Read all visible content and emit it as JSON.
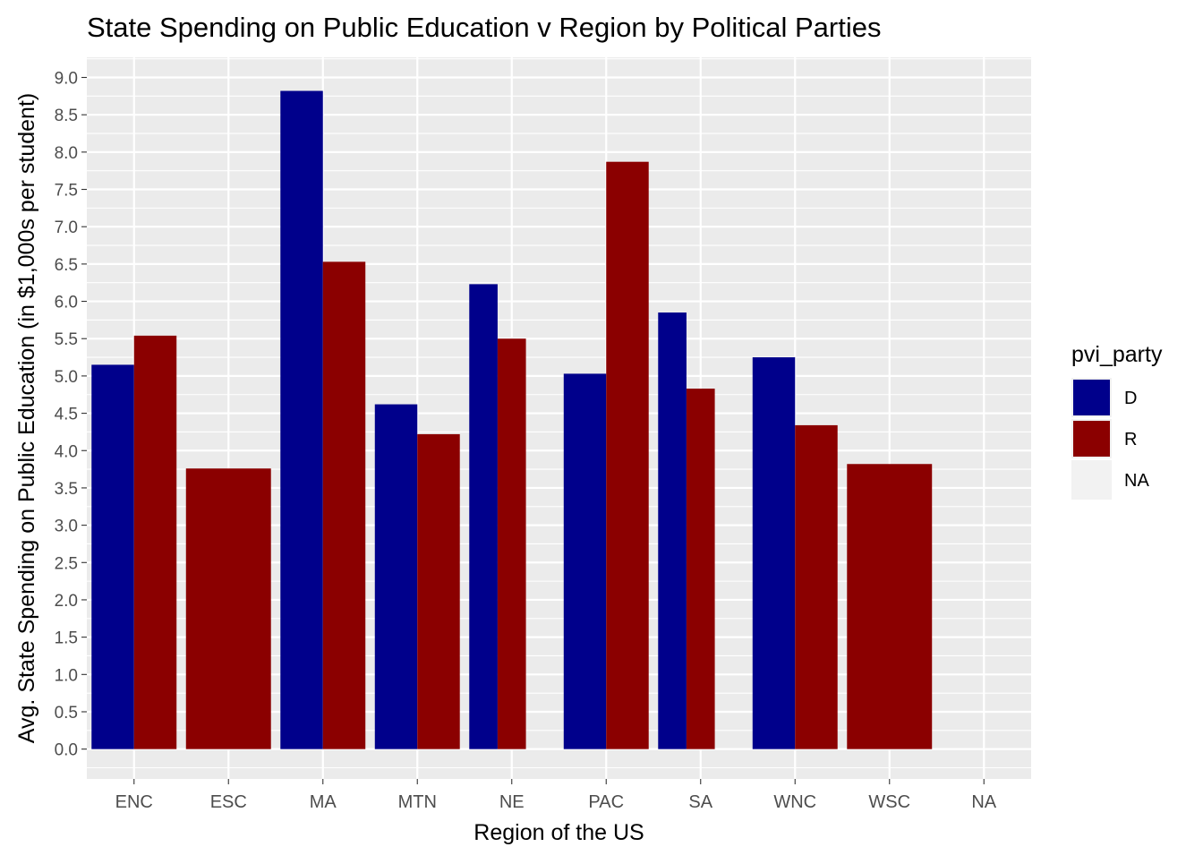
{
  "chart_data": {
    "type": "bar",
    "title": "State Spending on Public Education v Region by Political Parties",
    "xlabel": "Region of the US",
    "ylabel": "Avg. State Spending on Public Education (in $1,000s per student)",
    "categories": [
      "ENC",
      "ESC",
      "MA",
      "MTN",
      "NE",
      "PAC",
      "SA",
      "WNC",
      "WSC",
      "NA"
    ],
    "ylim": [
      -0.4,
      9.27
    ],
    "yticks": [
      "0.0",
      "0.5",
      "1.0",
      "1.5",
      "2.0",
      "2.5",
      "3.0",
      "3.5",
      "4.0",
      "4.5",
      "5.0",
      "5.5",
      "6.0",
      "6.5",
      "7.0",
      "7.5",
      "8.0",
      "8.5",
      "9.0"
    ],
    "grid": true,
    "legend": {
      "title": "pvi_party",
      "position": "right",
      "entries": [
        {
          "label": "D",
          "color": "#00008B"
        },
        {
          "label": "R",
          "color": "#8B0000"
        },
        {
          "label": "NA",
          "color": "#EBEBEB"
        }
      ]
    },
    "groups": [
      {
        "category": "ENC",
        "bars": [
          {
            "party": "D",
            "value": 5.15
          },
          {
            "party": "R",
            "value": 5.54
          }
        ]
      },
      {
        "category": "ESC",
        "bars": [
          {
            "party": "R",
            "value": 3.76
          }
        ]
      },
      {
        "category": "MA",
        "bars": [
          {
            "party": "D",
            "value": 8.82
          },
          {
            "party": "R",
            "value": 6.53
          }
        ]
      },
      {
        "category": "MTN",
        "bars": [
          {
            "party": "D",
            "value": 4.62
          },
          {
            "party": "R",
            "value": 4.22
          }
        ]
      },
      {
        "category": "NE",
        "bars": [
          {
            "party": "D",
            "value": 6.23
          },
          {
            "party": "R",
            "value": 5.5
          },
          {
            "party": "NA",
            "value": 0
          }
        ]
      },
      {
        "category": "PAC",
        "bars": [
          {
            "party": "D",
            "value": 5.03
          },
          {
            "party": "R",
            "value": 7.87
          }
        ]
      },
      {
        "category": "SA",
        "bars": [
          {
            "party": "D",
            "value": 5.85
          },
          {
            "party": "R",
            "value": 4.83
          },
          {
            "party": "NA",
            "value": 0
          }
        ]
      },
      {
        "category": "WNC",
        "bars": [
          {
            "party": "D",
            "value": 5.25
          },
          {
            "party": "R",
            "value": 4.34
          }
        ]
      },
      {
        "category": "WSC",
        "bars": [
          {
            "party": "R",
            "value": 3.82
          }
        ]
      },
      {
        "category": "NA",
        "bars": [
          {
            "party": "NA",
            "value": 0
          }
        ]
      }
    ]
  },
  "colors": {
    "panel_background": "#EBEBEB",
    "gridline": "#FFFFFF",
    "axis_text": "#4D4D4D",
    "text": "#000000"
  }
}
